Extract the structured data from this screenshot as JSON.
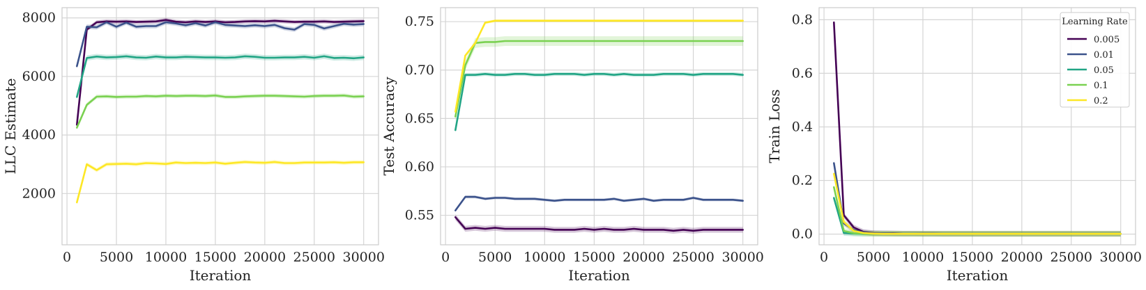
{
  "colors": {
    "lr_0.005": "#440154",
    "lr_0.01": "#3b528b",
    "lr_0.05": "#21a585",
    "lr_0.1": "#7ad151",
    "lr_0.2": "#fde725",
    "grid": "#d5d5d5",
    "spine": "#cccccc"
  },
  "legend": {
    "title": "Learning Rate",
    "placement": "top-right",
    "panel": 2
  },
  "chart_data": [
    {
      "type": "line",
      "xlabel": "Iteration",
      "ylabel": "LLC Estimate",
      "xlim": [
        -500,
        31500
      ],
      "ylim": [
        250,
        8350
      ],
      "xticks": [
        0,
        5000,
        10000,
        15000,
        20000,
        25000,
        30000
      ],
      "yticks": [
        2000,
        4000,
        6000,
        8000
      ],
      "x": [
        1000,
        2000,
        3000,
        4000,
        5000,
        6000,
        7000,
        8000,
        9000,
        10000,
        11000,
        12000,
        13000,
        14000,
        15000,
        16000,
        17000,
        18000,
        19000,
        20000,
        21000,
        22000,
        23000,
        24000,
        25000,
        26000,
        27000,
        28000,
        29000,
        30000
      ],
      "series": [
        {
          "name": "0.005",
          "values": [
            4350,
            7600,
            7850,
            7880,
            7870,
            7880,
            7860,
            7870,
            7880,
            7930,
            7870,
            7850,
            7880,
            7860,
            7880,
            7850,
            7860,
            7880,
            7890,
            7880,
            7900,
            7880,
            7860,
            7870,
            7870,
            7880,
            7860,
            7870,
            7880,
            7890
          ],
          "band": 70
        },
        {
          "name": "0.01",
          "values": [
            6350,
            7700,
            7680,
            7850,
            7700,
            7840,
            7700,
            7720,
            7720,
            7850,
            7810,
            7750,
            7820,
            7740,
            7850,
            7760,
            7740,
            7720,
            7750,
            7720,
            7760,
            7650,
            7600,
            7790,
            7760,
            7640,
            7720,
            7800,
            7770,
            7790
          ],
          "band": 80
        },
        {
          "name": "0.05",
          "values": [
            5300,
            6630,
            6680,
            6650,
            6660,
            6690,
            6650,
            6640,
            6680,
            6650,
            6650,
            6670,
            6660,
            6650,
            6650,
            6640,
            6650,
            6690,
            6670,
            6640,
            6640,
            6650,
            6650,
            6670,
            6640,
            6690,
            6630,
            6640,
            6620,
            6650
          ],
          "band": 90
        },
        {
          "name": "0.1",
          "values": [
            4250,
            5030,
            5310,
            5320,
            5300,
            5310,
            5310,
            5330,
            5320,
            5340,
            5330,
            5340,
            5340,
            5330,
            5350,
            5300,
            5300,
            5320,
            5330,
            5340,
            5340,
            5330,
            5320,
            5310,
            5330,
            5340,
            5340,
            5350,
            5310,
            5320
          ],
          "band": 70
        },
        {
          "name": "0.2",
          "values": [
            1700,
            3000,
            2800,
            3000,
            3010,
            3020,
            3000,
            3040,
            3030,
            3010,
            3060,
            3040,
            3050,
            3040,
            3060,
            3020,
            3050,
            3080,
            3060,
            3050,
            3080,
            3040,
            3040,
            3060,
            3060,
            3060,
            3070,
            3050,
            3070,
            3070
          ],
          "band": 70
        }
      ]
    },
    {
      "type": "line",
      "xlabel": "Iteration",
      "ylabel": "Test Accuracy",
      "xlim": [
        -500,
        31500
      ],
      "ylim": [
        0.5195,
        0.7645
      ],
      "xticks": [
        0,
        5000,
        10000,
        15000,
        20000,
        25000,
        30000
      ],
      "yticks": [
        0.55,
        0.6,
        0.65,
        0.7,
        0.75
      ],
      "x": [
        1000,
        2000,
        3000,
        4000,
        5000,
        6000,
        7000,
        8000,
        9000,
        10000,
        11000,
        12000,
        13000,
        14000,
        15000,
        16000,
        17000,
        18000,
        19000,
        20000,
        21000,
        22000,
        23000,
        24000,
        25000,
        26000,
        27000,
        28000,
        29000,
        30000
      ],
      "series": [
        {
          "name": "0.005",
          "values": [
            0.548,
            0.536,
            0.537,
            0.536,
            0.537,
            0.536,
            0.536,
            0.536,
            0.536,
            0.536,
            0.535,
            0.535,
            0.535,
            0.536,
            0.535,
            0.536,
            0.535,
            0.535,
            0.536,
            0.535,
            0.535,
            0.535,
            0.534,
            0.535,
            0.534,
            0.535,
            0.535,
            0.535,
            0.535,
            0.535
          ],
          "band": 0.003
        },
        {
          "name": "0.01",
          "values": [
            0.555,
            0.569,
            0.569,
            0.567,
            0.568,
            0.568,
            0.567,
            0.567,
            0.567,
            0.566,
            0.565,
            0.566,
            0.566,
            0.566,
            0.566,
            0.566,
            0.567,
            0.565,
            0.566,
            0.567,
            0.565,
            0.566,
            0.566,
            0.566,
            0.568,
            0.566,
            0.566,
            0.566,
            0.566,
            0.565
          ],
          "band": 0.0015
        },
        {
          "name": "0.05",
          "values": [
            0.638,
            0.695,
            0.695,
            0.696,
            0.695,
            0.695,
            0.696,
            0.696,
            0.695,
            0.695,
            0.696,
            0.696,
            0.696,
            0.695,
            0.696,
            0.696,
            0.695,
            0.696,
            0.695,
            0.695,
            0.695,
            0.696,
            0.696,
            0.696,
            0.695,
            0.696,
            0.696,
            0.696,
            0.696,
            0.695
          ],
          "band": 0.002
        },
        {
          "name": "0.1",
          "values": [
            0.652,
            0.705,
            0.728,
            0.729,
            0.729,
            0.73,
            0.73,
            0.73,
            0.73,
            0.73,
            0.73,
            0.73,
            0.73,
            0.73,
            0.73,
            0.73,
            0.73,
            0.73,
            0.73,
            0.73,
            0.73,
            0.73,
            0.73,
            0.73,
            0.73,
            0.73,
            0.73,
            0.73,
            0.73,
            0.73
          ],
          "band": 0.005
        },
        {
          "name": "0.2",
          "values": [
            0.657,
            0.715,
            0.728,
            0.749,
            0.751,
            0.751,
            0.751,
            0.751,
            0.751,
            0.751,
            0.751,
            0.751,
            0.751,
            0.751,
            0.751,
            0.751,
            0.751,
            0.751,
            0.751,
            0.751,
            0.751,
            0.751,
            0.751,
            0.751,
            0.751,
            0.751,
            0.751,
            0.751,
            0.751,
            0.751
          ],
          "band": 0.0015
        }
      ]
    },
    {
      "type": "line",
      "xlabel": "Iteration",
      "ylabel": "Train Loss",
      "xlim": [
        -500,
        31500
      ],
      "ylim": [
        -0.04,
        0.845
      ],
      "xticks": [
        0,
        5000,
        10000,
        15000,
        20000,
        25000,
        30000
      ],
      "yticks": [
        0.0,
        0.2,
        0.4,
        0.6,
        0.8
      ],
      "x": [
        1000,
        2000,
        3000,
        4000,
        5000,
        6000,
        7000,
        8000,
        9000,
        10000,
        11000,
        12000,
        13000,
        14000,
        15000,
        16000,
        17000,
        18000,
        19000,
        20000,
        21000,
        22000,
        23000,
        24000,
        25000,
        26000,
        27000,
        28000,
        29000,
        30000
      ],
      "series": [
        {
          "name": "0.005",
          "values": [
            0.79,
            0.07,
            0.025,
            0.008,
            0.004,
            0.003,
            0.003,
            0.002,
            0.002,
            0.002,
            0.002,
            0.001,
            0.001,
            0.001,
            0.001,
            0.001,
            0.001,
            0.001,
            0.001,
            0.001,
            0.001,
            0.001,
            0.001,
            0.001,
            0.001,
            0.001,
            0.001,
            0.001,
            0.001,
            0.001
          ],
          "band": 0.01
        },
        {
          "name": "0.01",
          "values": [
            0.265,
            0.04,
            0.015,
            0.006,
            0.003,
            0.003,
            0.002,
            0.002,
            0.002,
            0.001,
            0.001,
            0.001,
            0.001,
            0.001,
            0.001,
            0.001,
            0.001,
            0.001,
            0.001,
            0.001,
            0.001,
            0.001,
            0.001,
            0.001,
            0.001,
            0.001,
            0.001,
            0.001,
            0.001,
            0.001
          ],
          "band": 0.01
        },
        {
          "name": "0.05",
          "values": [
            0.135,
            0.004,
            0.002,
            0.001,
            0.001,
            0.001,
            0.001,
            0.001,
            0.001,
            0.001,
            0.001,
            0.001,
            0.001,
            0.001,
            0.001,
            0.001,
            0.001,
            0.001,
            0.001,
            0.001,
            0.001,
            0.001,
            0.001,
            0.001,
            0.001,
            0.001,
            0.001,
            0.001,
            0.001,
            0.001
          ],
          "band": 0.01
        },
        {
          "name": "0.1",
          "values": [
            0.175,
            0.012,
            0.003,
            0.002,
            0.001,
            0.001,
            0.001,
            0.001,
            0.001,
            0.001,
            0.001,
            0.001,
            0.001,
            0.001,
            0.001,
            0.001,
            0.001,
            0.001,
            0.001,
            0.001,
            0.001,
            0.001,
            0.001,
            0.001,
            0.001,
            0.001,
            0.001,
            0.001,
            0.001,
            0.001
          ],
          "band": 0.01
        },
        {
          "name": "0.2",
          "values": [
            0.225,
            0.045,
            0.012,
            0.004,
            0.002,
            0.001,
            0.001,
            0.001,
            0.001,
            0.001,
            0.001,
            0.001,
            0.001,
            0.001,
            0.001,
            0.001,
            0.001,
            0.001,
            0.001,
            0.001,
            0.001,
            0.001,
            0.001,
            0.001,
            0.001,
            0.001,
            0.001,
            0.001,
            0.001,
            0.001
          ],
          "band": 0.01
        }
      ]
    }
  ]
}
